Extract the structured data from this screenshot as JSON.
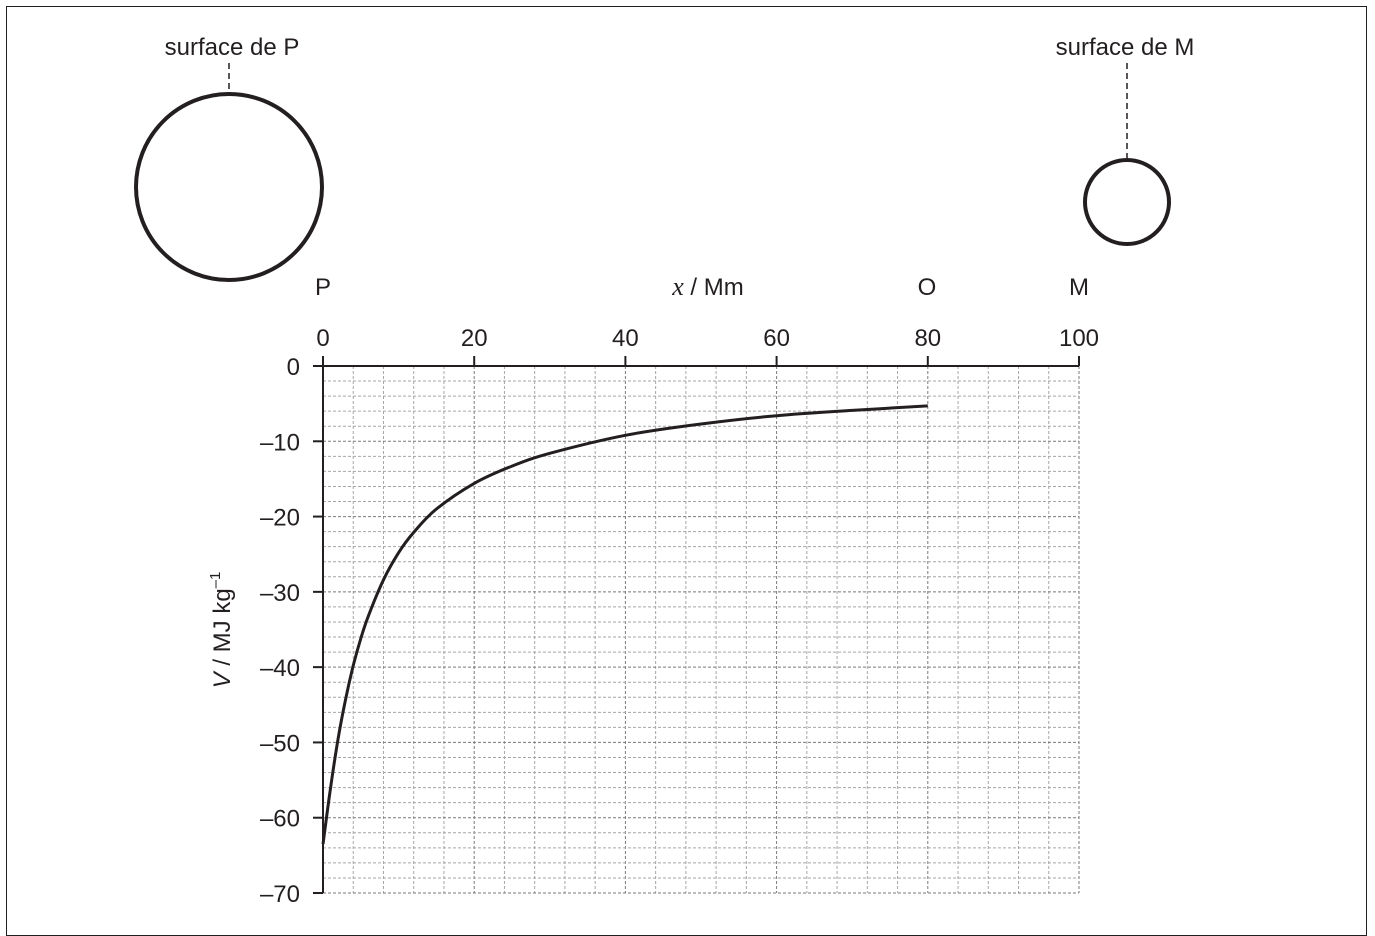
{
  "labels": {
    "surface_p": "surface de P",
    "surface_m": "surface de M",
    "point_p": "P",
    "point_o": "O",
    "point_m": "M"
  },
  "chart_data": {
    "type": "line",
    "xlabel_var": "x",
    "xlabel_unit": " / Mm",
    "ylabel_var": "V",
    "ylabel_unit": " / MJ kg",
    "ylabel_exp": "–1",
    "xlim": [
      0,
      100
    ],
    "ylim": [
      -70,
      0
    ],
    "x_ticks": [
      "0",
      "20",
      "40",
      "60",
      "80",
      "100"
    ],
    "y_ticks": [
      "0",
      "–10",
      "–20",
      "–30",
      "–40",
      "–50",
      "–60",
      "–70"
    ],
    "grid": true,
    "series": [
      {
        "x": [
          0,
          1,
          2,
          3,
          4,
          5,
          6,
          8,
          10,
          12,
          15,
          20,
          25,
          30,
          40,
          50,
          60,
          70,
          80
        ],
        "values": [
          -63.5,
          -56,
          -49.5,
          -44.2,
          -39.8,
          -36.2,
          -33.2,
          -28.4,
          -24.8,
          -22.1,
          -19,
          -15.6,
          -13.3,
          -11.6,
          -9.2,
          -7.7,
          -6.6,
          -5.9,
          -5.3
        ]
      }
    ]
  }
}
